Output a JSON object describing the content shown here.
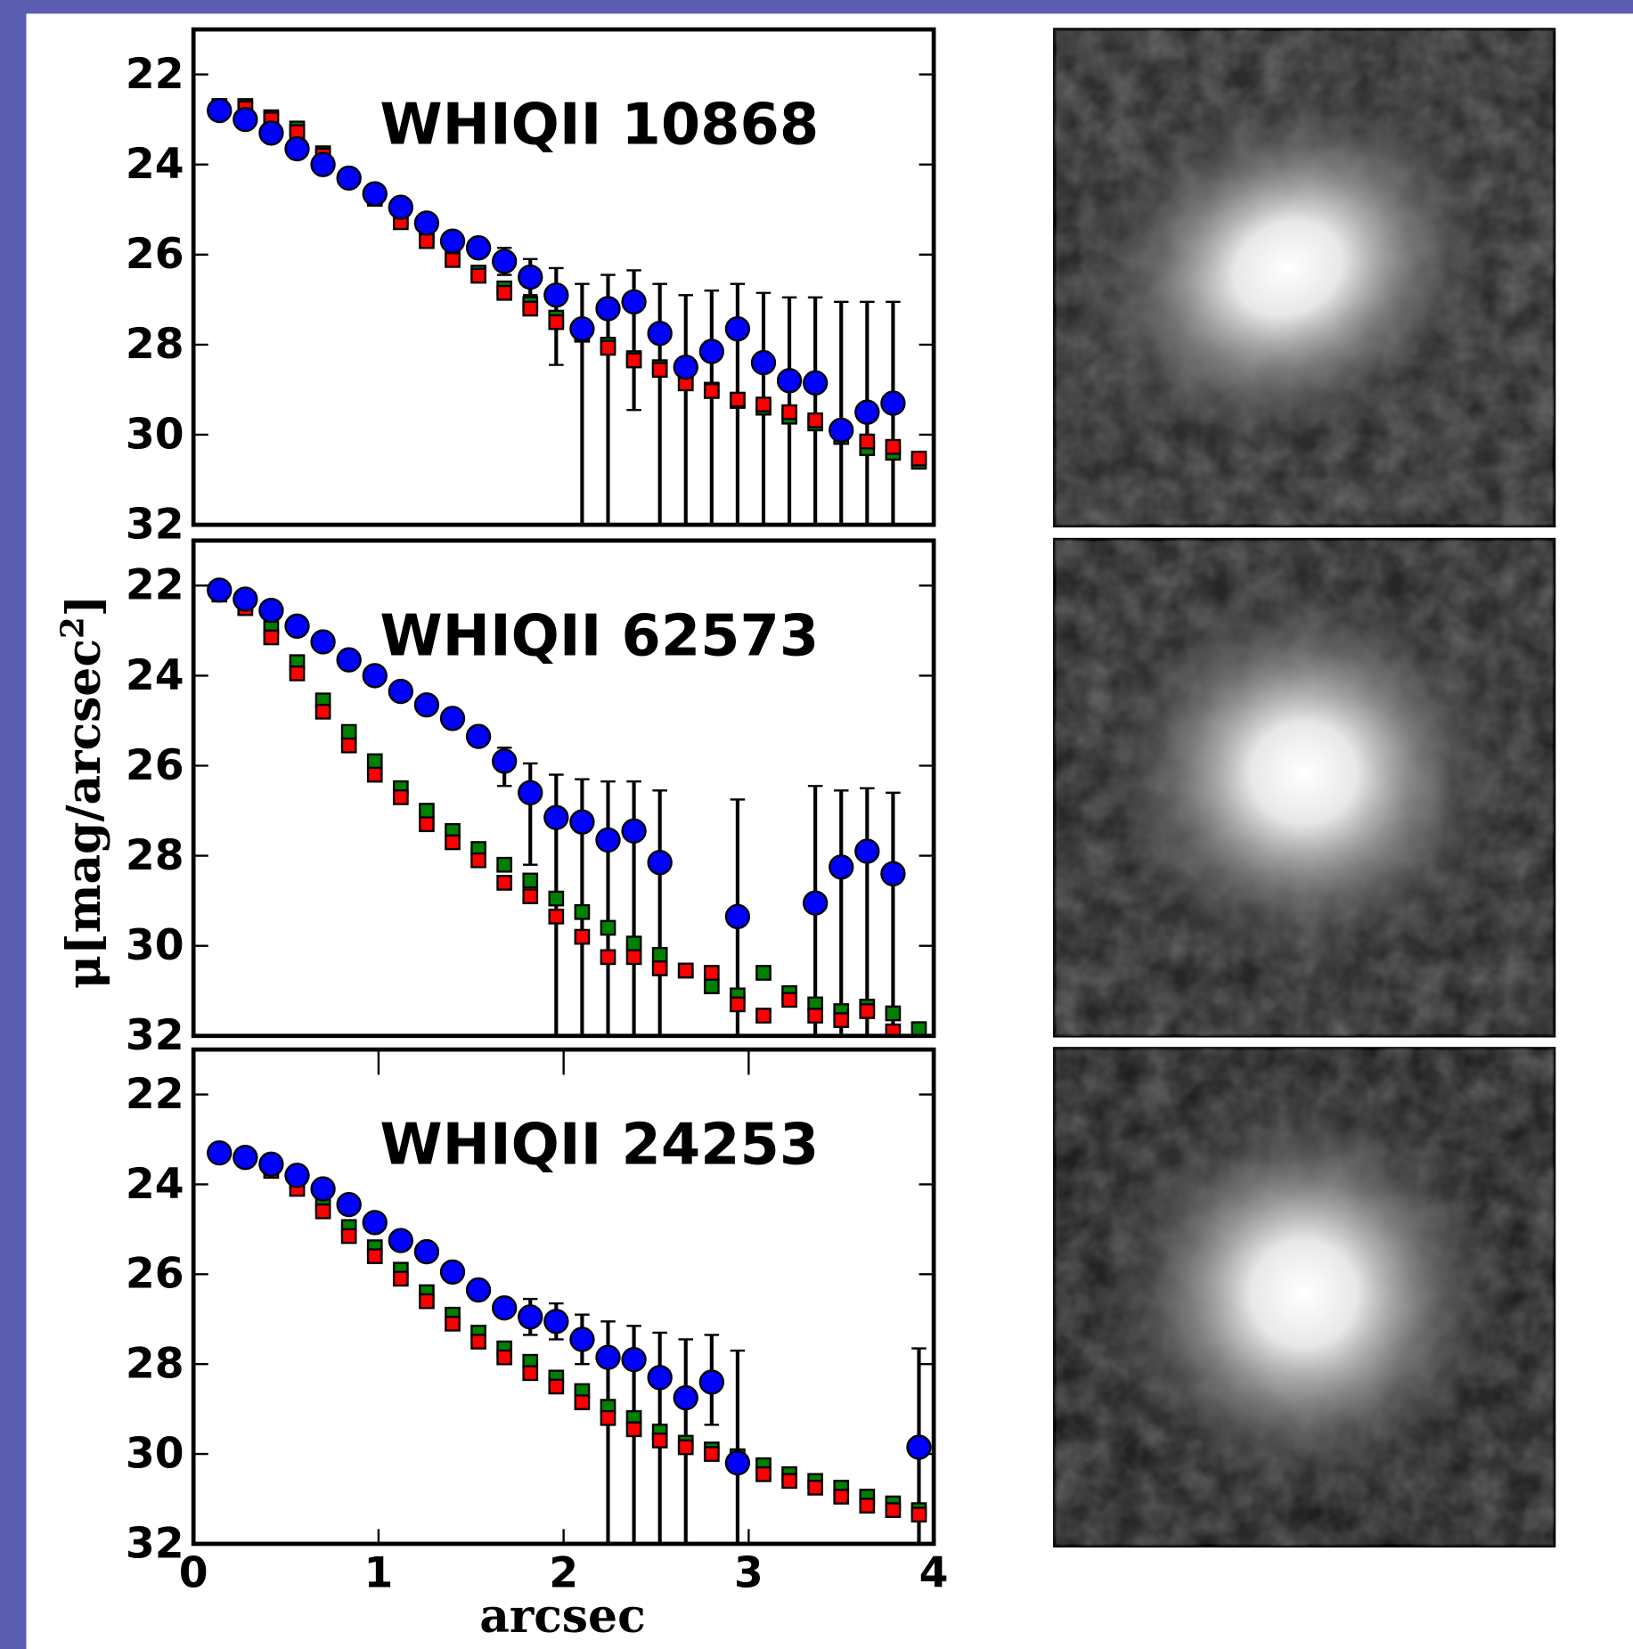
{
  "chart_data": [
    {
      "type": "scatter",
      "title": "WHIQII 10868",
      "x": [
        0.14,
        0.28,
        0.42,
        0.56,
        0.7,
        0.84,
        0.98,
        1.12,
        1.26,
        1.4,
        1.54,
        1.68,
        1.82,
        1.96,
        2.1,
        2.24,
        2.38,
        2.52,
        2.66,
        2.8,
        2.94,
        3.08,
        3.22,
        3.36,
        3.5,
        3.64,
        3.78,
        3.92
      ],
      "xlim": [
        0,
        4
      ],
      "ylim": [
        32,
        21
      ],
      "yticks": [
        22,
        24,
        26,
        28,
        30,
        32
      ],
      "series": [
        {
          "color": "#008000",
          "marker": "square",
          "values": [
            22.7,
            22.7,
            22.95,
            23.2,
            23.75,
            24.25,
            24.7,
            25.2,
            25.6,
            26.0,
            26.4,
            26.75,
            27.1,
            27.4,
            27.7,
            28.0,
            28.3,
            28.5,
            28.8,
            29.0,
            29.25,
            29.4,
            29.6,
            29.75,
            30.05,
            30.3,
            30.4,
            30.6
          ]
        },
        {
          "color": "#ff0000",
          "marker": "square",
          "values": [
            22.73,
            22.75,
            23.0,
            23.28,
            23.8,
            24.3,
            24.76,
            25.28,
            25.7,
            26.12,
            26.47,
            26.85,
            27.2,
            27.5,
            27.78,
            28.07,
            28.35,
            28.56,
            28.86,
            29.03,
            29.22,
            29.33,
            29.5,
            29.68,
            29.92,
            30.15,
            30.27,
            30.53
          ]
        },
        {
          "color": "#0000ff",
          "marker": "circle",
          "values": [
            22.8,
            23.0,
            23.3,
            23.65,
            24.0,
            24.3,
            24.65,
            24.95,
            25.3,
            25.7,
            25.85,
            26.15,
            26.5,
            26.9,
            27.65,
            27.2,
            27.05,
            27.75,
            28.5,
            28.15,
            27.65,
            28.4,
            28.8,
            28.85,
            29.9,
            29.5,
            29.3,
            null
          ],
          "err_up": [
            0.1,
            0.1,
            0.1,
            0.1,
            0.1,
            0.1,
            0.1,
            0.1,
            0.1,
            0.15,
            0.2,
            0.3,
            0.4,
            0.6,
            1.0,
            0.75,
            0.7,
            1.1,
            1.6,
            1.35,
            1.0,
            1.55,
            1.85,
            1.9,
            2.85,
            2.45,
            2.25,
            null
          ],
          "err_down": [
            0.1,
            0.1,
            0.1,
            0.1,
            0.1,
            0.1,
            0.1,
            0.1,
            0.1,
            0.15,
            0.2,
            0.3,
            0.4,
            1.55,
            5,
            5,
            2.4,
            5,
            5,
            5,
            5,
            5,
            5,
            5,
            5,
            5,
            5,
            null
          ]
        }
      ]
    },
    {
      "type": "scatter",
      "title": "WHIQII 62573",
      "ylabel": {
        "main": "μ[mag/arcsec",
        "sup": "2",
        "close": "]"
      },
      "x": [
        0.14,
        0.28,
        0.42,
        0.56,
        0.7,
        0.84,
        0.98,
        1.12,
        1.26,
        1.4,
        1.54,
        1.68,
        1.82,
        1.96,
        2.1,
        2.24,
        2.38,
        2.52,
        2.66,
        2.8,
        2.94,
        3.08,
        3.22,
        3.36,
        3.5,
        3.64,
        3.78,
        3.92
      ],
      "xlim": [
        0,
        4
      ],
      "ylim": [
        32,
        21
      ],
      "yticks": [
        22,
        24,
        26,
        28,
        30,
        32
      ],
      "series": [
        {
          "color": "#008000",
          "marker": "square",
          "values": [
            22.1,
            22.4,
            22.95,
            23.7,
            24.55,
            25.25,
            25.9,
            26.5,
            27.0,
            27.45,
            27.85,
            28.2,
            28.55,
            28.95,
            29.25,
            29.6,
            29.95,
            30.2,
            30.55,
            30.9,
            31.1,
            30.6,
            31.05,
            31.3,
            31.45,
            31.35,
            31.5,
            31.85
          ]
        },
        {
          "color": "#ff0000",
          "marker": "square",
          "values": [
            22.2,
            22.5,
            23.15,
            23.95,
            24.8,
            25.55,
            26.2,
            26.7,
            27.3,
            27.7,
            28.1,
            28.6,
            28.9,
            29.35,
            29.8,
            30.25,
            30.25,
            30.5,
            30.55,
            30.6,
            31.3,
            31.55,
            31.2,
            31.55,
            31.65,
            31.45,
            31.9,
            null
          ]
        },
        {
          "color": "#0000ff",
          "marker": "circle",
          "values": [
            22.1,
            22.3,
            22.55,
            22.9,
            23.25,
            23.65,
            24.0,
            24.35,
            24.65,
            24.95,
            25.35,
            25.9,
            26.6,
            27.15,
            27.25,
            27.65,
            27.45,
            28.15,
            null,
            null,
            29.35,
            null,
            null,
            29.05,
            28.25,
            27.9,
            28.4,
            null
          ],
          "err_up": [
            0.1,
            0.1,
            0.1,
            0.1,
            0.1,
            0.1,
            0.1,
            0.1,
            0.1,
            0.1,
            0.15,
            0.3,
            0.65,
            0.95,
            0.95,
            1.3,
            1.1,
            1.6,
            null,
            null,
            2.6,
            null,
            null,
            2.6,
            1.7,
            1.4,
            1.8,
            null
          ],
          "err_down": [
            0.1,
            0.1,
            0.1,
            0.1,
            0.1,
            0.1,
            0.1,
            0.1,
            0.1,
            0.1,
            0.15,
            0.55,
            1.6,
            5,
            5,
            5,
            5,
            5,
            null,
            null,
            5,
            null,
            null,
            5,
            5,
            5,
            5,
            null
          ]
        }
      ]
    },
    {
      "type": "scatter",
      "title": "WHIQII 24253",
      "xlabel": "arcsec",
      "x": [
        0.14,
        0.28,
        0.42,
        0.56,
        0.7,
        0.84,
        0.98,
        1.12,
        1.26,
        1.4,
        1.54,
        1.68,
        1.82,
        1.96,
        2.1,
        2.24,
        2.38,
        2.52,
        2.66,
        2.8,
        2.94,
        3.08,
        3.22,
        3.36,
        3.5,
        3.64,
        3.78,
        3.92
      ],
      "xlim": [
        0,
        4
      ],
      "xticks": [
        0,
        1,
        2,
        3,
        4
      ],
      "ylim": [
        32,
        21
      ],
      "yticks": [
        22,
        24,
        26,
        28,
        30,
        32
      ],
      "series": [
        {
          "color": "#008000",
          "marker": "square",
          "values": [
            23.25,
            23.4,
            23.6,
            23.95,
            24.4,
            24.95,
            25.4,
            25.9,
            26.4,
            26.9,
            27.3,
            27.65,
            27.95,
            28.3,
            28.6,
            28.95,
            29.2,
            29.5,
            29.75,
            29.9,
            30.05,
            30.25,
            30.45,
            30.6,
            30.75,
            30.95,
            31.1,
            31.25
          ]
        },
        {
          "color": "#ff0000",
          "marker": "square",
          "values": [
            23.3,
            23.45,
            23.7,
            24.1,
            24.6,
            25.15,
            25.6,
            26.1,
            26.6,
            27.1,
            27.5,
            27.85,
            28.2,
            28.5,
            28.85,
            29.2,
            29.45,
            29.7,
            29.85,
            30.0,
            30.25,
            30.45,
            30.6,
            30.75,
            30.95,
            31.15,
            31.25,
            31.35
          ]
        },
        {
          "color": "#0000ff",
          "marker": "circle",
          "values": [
            23.3,
            23.4,
            23.55,
            23.8,
            24.1,
            24.45,
            24.85,
            25.25,
            25.5,
            25.95,
            26.35,
            26.75,
            26.95,
            27.05,
            27.45,
            27.85,
            27.9,
            28.3,
            28.75,
            28.4,
            30.2,
            null,
            null,
            null,
            null,
            null,
            null,
            29.85
          ],
          "err_up": [
            0.1,
            0.1,
            0.1,
            0.1,
            0.1,
            0.1,
            0.1,
            0.1,
            0.1,
            0.1,
            0.1,
            0.2,
            0.4,
            0.4,
            0.55,
            0.8,
            0.75,
            1.0,
            1.3,
            1.05,
            2.5,
            null,
            null,
            null,
            null,
            null,
            null,
            2.2
          ],
          "err_down": [
            0.1,
            0.1,
            0.1,
            0.1,
            0.1,
            0.1,
            0.1,
            0.1,
            0.1,
            0.1,
            0.1,
            0.2,
            0.4,
            0.4,
            0.55,
            5,
            5,
            5,
            5,
            0.95,
            5,
            null,
            null,
            null,
            null,
            null,
            null,
            5
          ]
        }
      ]
    }
  ]
}
